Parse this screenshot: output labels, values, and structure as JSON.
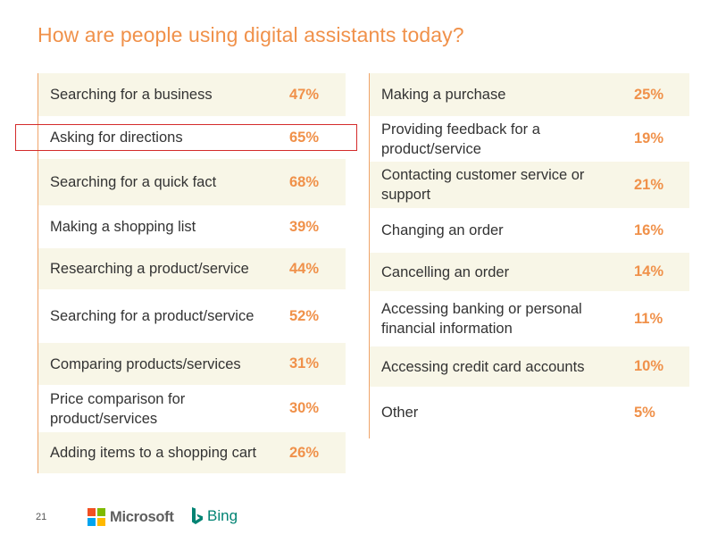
{
  "title": "How are people using digital assistants today?",
  "colors": {
    "accent": "#f0914a",
    "row_shade": "#f8f6e7",
    "highlight": "#d42b2b",
    "bing": "#008373"
  },
  "left_column": [
    {
      "label": "Searching for a business",
      "value": "47%"
    },
    {
      "label": "Asking for directions",
      "value": "65%"
    },
    {
      "label": "Searching for a quick fact",
      "value": "68%"
    },
    {
      "label": "Making a shopping list",
      "value": "39%"
    },
    {
      "label": "Researching a product/service",
      "value": "44%"
    },
    {
      "label": "Searching for a product/service",
      "value": "52%"
    },
    {
      "label": "Comparing products/services",
      "value": "31%"
    },
    {
      "label": "Price comparison for product/services",
      "value": "30%"
    },
    {
      "label": "Adding items to a shopping cart",
      "value": "26%"
    }
  ],
  "right_column": [
    {
      "label": "Making a purchase",
      "value": "25%"
    },
    {
      "label": "Providing feedback for a product/service",
      "value": "19%"
    },
    {
      "label": "Contacting customer service or support",
      "value": "21%"
    },
    {
      "label": "Changing an order",
      "value": "16%"
    },
    {
      "label": "Cancelling an order",
      "value": "14%"
    },
    {
      "label": "Accessing banking or personal financial information",
      "value": "11%"
    },
    {
      "label": "Accessing credit card accounts",
      "value": "10%"
    },
    {
      "label": "Other",
      "value": "5%"
    }
  ],
  "footer": {
    "page_number": "21",
    "microsoft_label": "Microsoft",
    "bing_label": "Bing",
    "microsoft_logo_icon": "microsoft-logo-icon",
    "bing_logo_icon": "bing-logo-icon"
  }
}
